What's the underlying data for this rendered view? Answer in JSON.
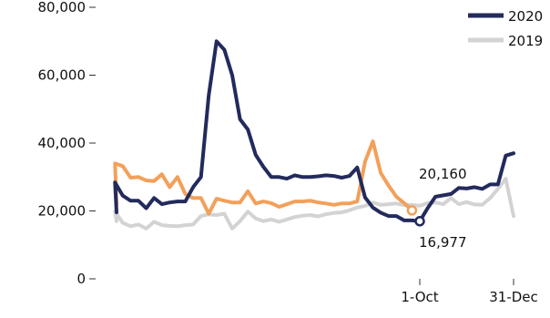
{
  "chart_data": {
    "type": "line",
    "title": "",
    "xlabel": "",
    "ylabel": "",
    "ylim": [
      0,
      80000
    ],
    "y_ticks": [
      "80,000",
      "60,000",
      "40,000",
      "20,000",
      "0"
    ],
    "x_ticks": [
      {
        "label": "1-Oct",
        "week": 40
      },
      {
        "label": "31-Dec",
        "week": 52
      }
    ],
    "x_unit": "week of year",
    "grid": false,
    "legend_position": "top-right",
    "series": [
      {
        "name": "2020",
        "color": "#232a5c",
        "values": [
          19600,
          28400,
          24500,
          23000,
          23000,
          20800,
          23800,
          22000,
          22500,
          22800,
          22800,
          27000,
          30000,
          54000,
          70000,
          67500,
          60000,
          47000,
          44000,
          36500,
          33000,
          30000,
          30000,
          29500,
          30500,
          30000,
          30000,
          30200,
          30500,
          30300,
          29800,
          30300,
          32800,
          24000,
          21000,
          19500,
          18500,
          18500,
          17200,
          17200,
          16977,
          20800,
          24200,
          24600,
          25000,
          26800,
          26600,
          27000,
          26500,
          27800,
          27800,
          36300,
          37000
        ]
      },
      {
        "name": "2019",
        "color": "#d3d3d3",
        "values": [
          17000,
          19800,
          16500,
          15500,
          16000,
          14800,
          16800,
          15800,
          15600,
          15500,
          15800,
          16000,
          18500,
          19000,
          18800,
          19200,
          14800,
          17000,
          19800,
          17800,
          17000,
          17500,
          16800,
          17500,
          18200,
          18600,
          18800,
          18400,
          19000,
          19400,
          19600,
          20200,
          21000,
          21500,
          22500,
          21800,
          22000,
          22200,
          21700,
          21800,
          21500,
          22300,
          22500,
          22000,
          23800,
          22000,
          22600,
          21900,
          21800,
          23800,
          26500,
          29500,
          18500
        ]
      },
      {
        "name": "",
        "color": "#f2a05a",
        "values": [
          22000,
          34000,
          33200,
          29800,
          30000,
          29000,
          28800,
          30800,
          27000,
          30000,
          25000,
          23800,
          23800,
          19200,
          23600,
          23000,
          22500,
          22500,
          25800,
          22200,
          22800,
          22300,
          21200,
          22000,
          22800,
          22800,
          23000,
          22500,
          22200,
          21800,
          22200,
          22200,
          22800,
          34500,
          40500,
          31200,
          27500,
          24200,
          22300,
          20160
        ]
      }
    ],
    "annotations": [
      {
        "text": "20,160",
        "series": "",
        "week": 40,
        "value": 20160
      },
      {
        "text": "16,977",
        "series": "2020",
        "week": 40,
        "value": 16977
      }
    ]
  }
}
